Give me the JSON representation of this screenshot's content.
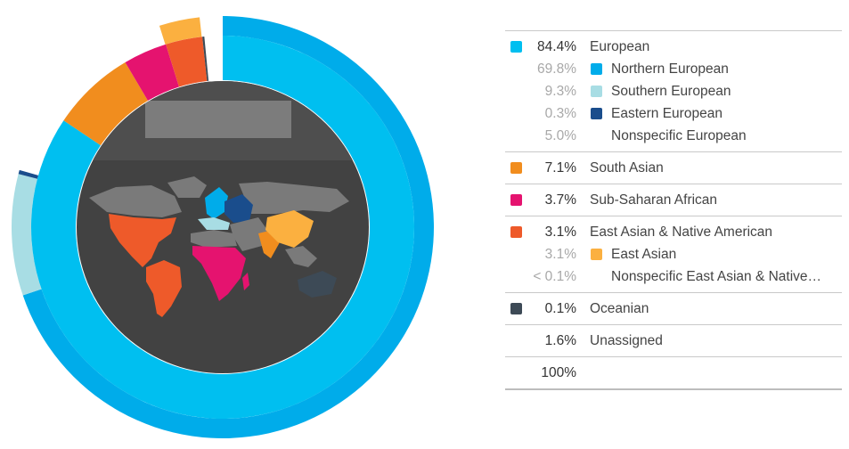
{
  "colors": {
    "european": "#00bff0",
    "outer_blue": "#00acea",
    "northern_european": "#00acea",
    "southern_european": "#a8dde4",
    "eastern_european": "#1a4d8c",
    "south_asian": "#f18d1e",
    "sub_saharan_african": "#e5136f",
    "east_asian_native_american": "#ee5a2a",
    "east_asian": "#fbb040",
    "oceanian": "#3d4a56",
    "globe": "#424242"
  },
  "chart_data": {
    "type": "pie",
    "inner_ring": [
      {
        "label": "European",
        "value": 84.4,
        "color": "#00bff0"
      },
      {
        "label": "South Asian",
        "value": 7.1,
        "color": "#f18d1e"
      },
      {
        "label": "Sub-Saharan African",
        "value": 3.7,
        "color": "#e5136f"
      },
      {
        "label": "East Asian & Native American",
        "value": 3.1,
        "color": "#ee5a2a"
      },
      {
        "label": "Oceanian",
        "value": 0.1,
        "color": "#3d4a56"
      },
      {
        "label": "Unassigned",
        "value": 1.6,
        "color": "#ffffff"
      }
    ],
    "outer_ring": [
      {
        "label": "Northern European",
        "value": 69.8,
        "color": "#00acea"
      },
      {
        "label": "Southern European",
        "value": 9.3,
        "color": "#a8dde4"
      },
      {
        "label": "Eastern European",
        "value": 0.3,
        "color": "#1a4d8c"
      },
      {
        "label": "Nonspecific European",
        "value": 5.0,
        "color": "#ffffff"
      },
      {
        "label": "South Asian",
        "value": 7.1,
        "color": "#ffffff"
      },
      {
        "label": "Sub-Saharan African",
        "value": 3.7,
        "color": "#ffffff"
      },
      {
        "label": "East Asian",
        "value": 3.1,
        "color": "#fbb040"
      },
      {
        "label": "Nonspecific East Asian & Native American",
        "value": 0.05,
        "color": "#ffffff"
      },
      {
        "label": "Oceanian",
        "value": 0.1,
        "color": "#ffffff"
      },
      {
        "label": "Unassigned",
        "value": 1.6,
        "color": "#ffffff"
      }
    ]
  },
  "legend": {
    "groups": [
      {
        "rows": [
          {
            "pct": "84.4%",
            "label": "European",
            "color": "#00bff0",
            "sub": false
          },
          {
            "pct": "69.8%",
            "label": "Northern European",
            "color": "#00acea",
            "sub": true
          },
          {
            "pct": "9.3%",
            "label": "Southern European",
            "color": "#a8dde4",
            "sub": true
          },
          {
            "pct": "0.3%",
            "label": "Eastern European",
            "color": "#1a4d8c",
            "sub": true
          },
          {
            "pct": "5.0%",
            "label": "Nonspecific European",
            "color": "",
            "sub": true
          }
        ]
      },
      {
        "rows": [
          {
            "pct": "7.1%",
            "label": "South Asian",
            "color": "#f18d1e",
            "sub": false
          }
        ]
      },
      {
        "rows": [
          {
            "pct": "3.7%",
            "label": "Sub-Saharan African",
            "color": "#e5136f",
            "sub": false
          }
        ]
      },
      {
        "rows": [
          {
            "pct": "3.1%",
            "label": "East Asian & Native American",
            "color": "#ee5a2a",
            "sub": false
          },
          {
            "pct": "3.1%",
            "label": "East Asian",
            "color": "#fbb040",
            "sub": true
          },
          {
            "pct": "< 0.1%",
            "label": "Nonspecific East Asian & Native…",
            "color": "",
            "sub": true
          }
        ]
      },
      {
        "rows": [
          {
            "pct": "0.1%",
            "label": "Oceanian",
            "color": "#3d4a56",
            "sub": false
          }
        ]
      },
      {
        "rows": [
          {
            "pct": "1.6%",
            "label": "Unassigned",
            "color": "",
            "sub": false
          }
        ]
      },
      {
        "total": true,
        "rows": [
          {
            "pct": "100%",
            "label": "",
            "color": "",
            "sub": false
          }
        ]
      }
    ]
  }
}
